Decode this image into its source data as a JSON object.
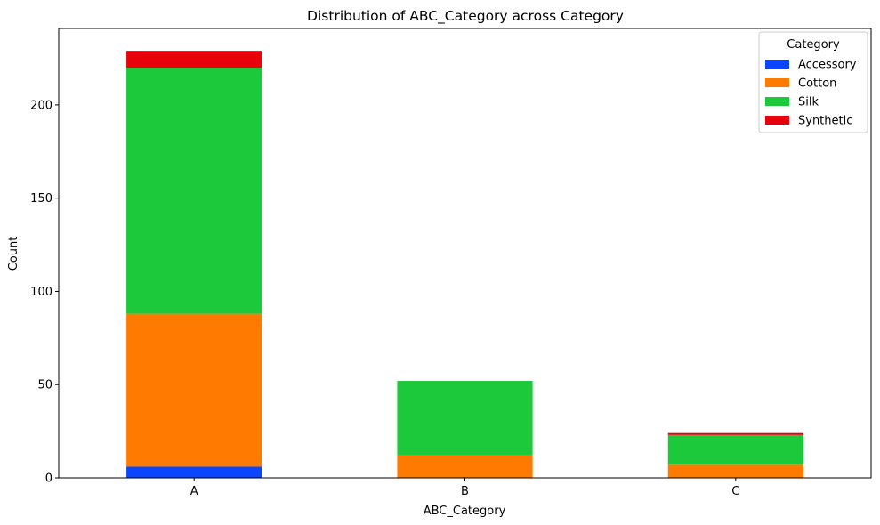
{
  "chart_data": {
    "type": "bar",
    "stacked": true,
    "title": "Distribution of ABC_Category across Category",
    "xlabel": "ABC_Category",
    "ylabel": "Count",
    "categories": [
      "A",
      "B",
      "C"
    ],
    "ylim": [
      0,
      241
    ],
    "yticks": [
      0,
      50,
      100,
      150,
      200
    ],
    "grid": false,
    "legend": {
      "title": "Category",
      "position": "top-right"
    },
    "series": [
      {
        "name": "Accessory",
        "color": "#0b45ff",
        "values": [
          6,
          0,
          0
        ]
      },
      {
        "name": "Cotton",
        "color": "#ff7a00",
        "values": [
          82,
          12,
          7
        ]
      },
      {
        "name": "Silk",
        "color": "#1cc93b",
        "values": [
          132,
          40,
          16
        ]
      },
      {
        "name": "Synthetic",
        "color": "#e8000b",
        "values": [
          9,
          0,
          1
        ]
      }
    ]
  }
}
